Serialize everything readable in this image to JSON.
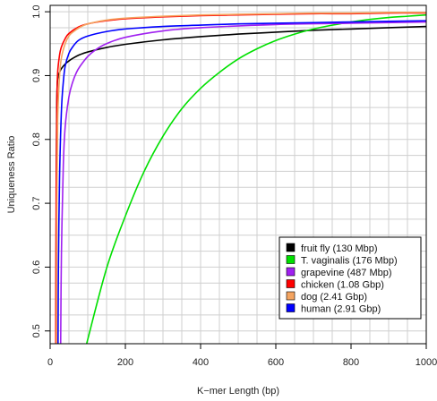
{
  "chart_data": {
    "type": "line",
    "title": "",
    "xlabel": "K−mer Length (bp)",
    "ylabel": "Uniqueness Ratio",
    "xlim": [
      0,
      1000
    ],
    "ylim": [
      0.48,
      1.01
    ],
    "x_ticks": [
      0,
      200,
      400,
      600,
      800,
      1000
    ],
    "y_ticks": [
      0.5,
      0.6,
      0.7,
      0.8,
      0.9,
      1.0
    ],
    "x_tick_labels": [
      "0",
      "200",
      "400",
      "600",
      "800",
      "1000"
    ],
    "y_tick_labels": [
      "0.5",
      "0.6",
      "0.7",
      "0.8",
      "0.9",
      "1.0"
    ],
    "grid": true,
    "minor_grid_step_x": 50,
    "minor_grid_step_y": 0.025,
    "legend_position": "bottom-right",
    "series": [
      {
        "name": "fruit fly (130 Mbp)",
        "color": "#000000",
        "x": [
          15,
          17,
          18,
          20,
          25,
          30,
          40,
          50,
          60,
          80,
          100,
          150,
          200,
          300,
          400,
          500,
          600,
          700,
          800,
          900,
          1000
        ],
        "y": [
          0.48,
          0.8,
          0.87,
          0.895,
          0.905,
          0.911,
          0.918,
          0.923,
          0.927,
          0.933,
          0.937,
          0.944,
          0.949,
          0.956,
          0.961,
          0.965,
          0.968,
          0.971,
          0.973,
          0.975,
          0.977
        ]
      },
      {
        "name": "T. vaginalis (176 Mbp)",
        "color": "#00e000",
        "x": [
          97,
          150,
          200,
          250,
          300,
          350,
          400,
          450,
          500,
          550,
          600,
          650,
          700,
          750,
          800,
          850,
          900,
          950,
          1000
        ],
        "y": [
          0.48,
          0.598,
          0.68,
          0.75,
          0.805,
          0.848,
          0.88,
          0.905,
          0.926,
          0.942,
          0.955,
          0.965,
          0.973,
          0.979,
          0.984,
          0.988,
          0.991,
          0.993,
          0.995
        ]
      },
      {
        "name": "grapevine (487 Mbp)",
        "color": "#a020f0",
        "x": [
          28,
          30,
          35,
          40,
          50,
          60,
          70,
          80,
          100,
          120,
          150,
          200,
          300,
          400,
          600,
          800,
          1000
        ],
        "y": [
          0.48,
          0.62,
          0.76,
          0.82,
          0.867,
          0.89,
          0.905,
          0.915,
          0.93,
          0.94,
          0.95,
          0.96,
          0.97,
          0.975,
          0.98,
          0.982,
          0.984
        ]
      },
      {
        "name": "chicken (1.08 Gbp)",
        "color": "#ff0000",
        "x": [
          15,
          16,
          18,
          20,
          25,
          30,
          40,
          50,
          75,
          100,
          150,
          200,
          300,
          400,
          500,
          600,
          700,
          800,
          900,
          1000
        ],
        "y": [
          0.48,
          0.72,
          0.86,
          0.905,
          0.932,
          0.945,
          0.958,
          0.966,
          0.976,
          0.981,
          0.986,
          0.989,
          0.992,
          0.994,
          0.995,
          0.996,
          0.997,
          0.997,
          0.998,
          0.998
        ]
      },
      {
        "name": "dog (2.41 Gbp)",
        "color": "#f4a460",
        "x": [
          17,
          18,
          20,
          25,
          30,
          40,
          50,
          60,
          80,
          100,
          150,
          200,
          300,
          400,
          500,
          600,
          700,
          800,
          900,
          1000
        ],
        "y": [
          0.48,
          0.7,
          0.83,
          0.9,
          0.928,
          0.95,
          0.962,
          0.968,
          0.976,
          0.981,
          0.987,
          0.99,
          0.993,
          0.995,
          0.996,
          0.997,
          0.998,
          0.998,
          0.999,
          0.999
        ]
      },
      {
        "name": "human (2.91 Gbp)",
        "color": "#0000ff",
        "x": [
          21,
          22,
          25,
          30,
          35,
          40,
          50,
          60,
          75,
          100,
          150,
          200,
          300,
          400,
          500,
          600,
          700,
          800,
          900,
          1000
        ],
        "y": [
          0.48,
          0.6,
          0.74,
          0.845,
          0.89,
          0.915,
          0.935,
          0.945,
          0.955,
          0.962,
          0.969,
          0.973,
          0.977,
          0.979,
          0.981,
          0.982,
          0.983,
          0.984,
          0.985,
          0.986
        ]
      }
    ]
  }
}
